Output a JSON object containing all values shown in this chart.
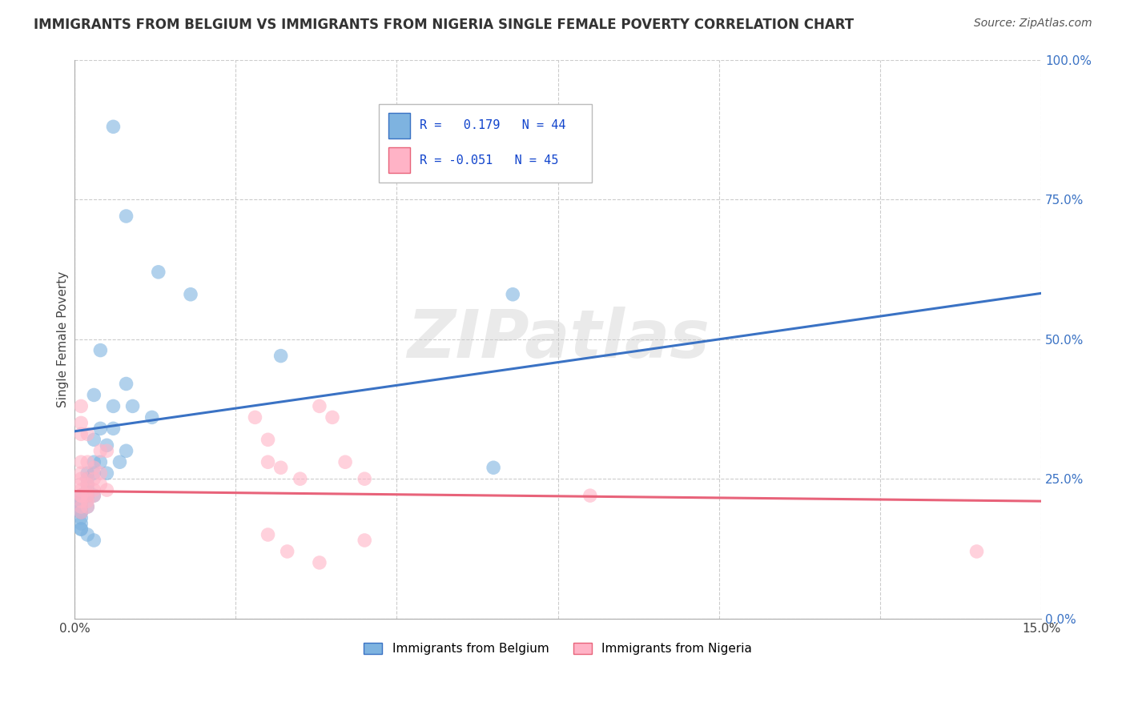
{
  "title": "IMMIGRANTS FROM BELGIUM VS IMMIGRANTS FROM NIGERIA SINGLE FEMALE POVERTY CORRELATION CHART",
  "source": "Source: ZipAtlas.com",
  "ylabel": "Single Female Poverty",
  "watermark": "ZIPatlas",
  "xlim": [
    0.0,
    0.15
  ],
  "ylim": [
    0.0,
    1.0
  ],
  "xticks": [
    0.0,
    0.15
  ],
  "yticks": [
    0.0,
    0.25,
    0.5,
    0.75,
    1.0
  ],
  "xtick_labels": [
    "0.0%",
    "15.0%"
  ],
  "ytick_labels": [
    "0.0%",
    "25.0%",
    "50.0%",
    "75.0%",
    "100.0%"
  ],
  "grid_xticks": [
    0.0,
    0.025,
    0.05,
    0.075,
    0.1,
    0.125,
    0.15
  ],
  "belgium_color": "#7EB3E0",
  "nigeria_color": "#FFB3C6",
  "belgium_line_color": "#3A72C4",
  "nigeria_line_color": "#E8637A",
  "belgium_R": 0.179,
  "belgium_N": 44,
  "nigeria_R": -0.051,
  "nigeria_N": 45,
  "legend_label_belgium": "Immigrants from Belgium",
  "legend_label_nigeria": "Immigrants from Nigeria",
  "bel_trend_y0": 0.335,
  "bel_trend_y1": 0.582,
  "nig_trend_y0": 0.228,
  "nig_trend_y1": 0.21,
  "belgium_points": [
    [
      0.006,
      0.88
    ],
    [
      0.008,
      0.72
    ],
    [
      0.013,
      0.62
    ],
    [
      0.018,
      0.58
    ],
    [
      0.004,
      0.48
    ],
    [
      0.008,
      0.42
    ],
    [
      0.032,
      0.47
    ],
    [
      0.003,
      0.4
    ],
    [
      0.006,
      0.38
    ],
    [
      0.009,
      0.38
    ],
    [
      0.012,
      0.36
    ],
    [
      0.004,
      0.34
    ],
    [
      0.006,
      0.34
    ],
    [
      0.003,
      0.32
    ],
    [
      0.005,
      0.31
    ],
    [
      0.008,
      0.3
    ],
    [
      0.003,
      0.28
    ],
    [
      0.004,
      0.28
    ],
    [
      0.007,
      0.28
    ],
    [
      0.002,
      0.26
    ],
    [
      0.003,
      0.26
    ],
    [
      0.005,
      0.26
    ],
    [
      0.002,
      0.25
    ],
    [
      0.002,
      0.24
    ],
    [
      0.002,
      0.23
    ],
    [
      0.002,
      0.23
    ],
    [
      0.001,
      0.22
    ],
    [
      0.002,
      0.22
    ],
    [
      0.003,
      0.22
    ],
    [
      0.001,
      0.21
    ],
    [
      0.001,
      0.21
    ],
    [
      0.001,
      0.2
    ],
    [
      0.001,
      0.2
    ],
    [
      0.002,
      0.2
    ],
    [
      0.001,
      0.19
    ],
    [
      0.001,
      0.19
    ],
    [
      0.001,
      0.18
    ],
    [
      0.001,
      0.17
    ],
    [
      0.001,
      0.16
    ],
    [
      0.001,
      0.16
    ],
    [
      0.002,
      0.15
    ],
    [
      0.003,
      0.14
    ],
    [
      0.065,
      0.27
    ],
    [
      0.068,
      0.58
    ]
  ],
  "nigeria_points": [
    [
      0.001,
      0.38
    ],
    [
      0.001,
      0.35
    ],
    [
      0.001,
      0.33
    ],
    [
      0.001,
      0.28
    ],
    [
      0.001,
      0.26
    ],
    [
      0.001,
      0.25
    ],
    [
      0.001,
      0.24
    ],
    [
      0.001,
      0.23
    ],
    [
      0.001,
      0.22
    ],
    [
      0.001,
      0.22
    ],
    [
      0.001,
      0.21
    ],
    [
      0.001,
      0.2
    ],
    [
      0.001,
      0.19
    ],
    [
      0.002,
      0.33
    ],
    [
      0.002,
      0.28
    ],
    [
      0.002,
      0.25
    ],
    [
      0.002,
      0.24
    ],
    [
      0.002,
      0.23
    ],
    [
      0.002,
      0.22
    ],
    [
      0.002,
      0.21
    ],
    [
      0.002,
      0.2
    ],
    [
      0.003,
      0.27
    ],
    [
      0.003,
      0.25
    ],
    [
      0.003,
      0.23
    ],
    [
      0.003,
      0.22
    ],
    [
      0.004,
      0.3
    ],
    [
      0.004,
      0.26
    ],
    [
      0.004,
      0.24
    ],
    [
      0.005,
      0.3
    ],
    [
      0.005,
      0.23
    ],
    [
      0.028,
      0.36
    ],
    [
      0.03,
      0.32
    ],
    [
      0.03,
      0.28
    ],
    [
      0.032,
      0.27
    ],
    [
      0.035,
      0.25
    ],
    [
      0.038,
      0.38
    ],
    [
      0.04,
      0.36
    ],
    [
      0.042,
      0.28
    ],
    [
      0.045,
      0.25
    ],
    [
      0.03,
      0.15
    ],
    [
      0.033,
      0.12
    ],
    [
      0.045,
      0.14
    ],
    [
      0.038,
      0.1
    ],
    [
      0.14,
      0.12
    ],
    [
      0.08,
      0.22
    ]
  ],
  "title_fontsize": 12,
  "axis_fontsize": 11,
  "tick_fontsize": 11,
  "source_fontsize": 10
}
